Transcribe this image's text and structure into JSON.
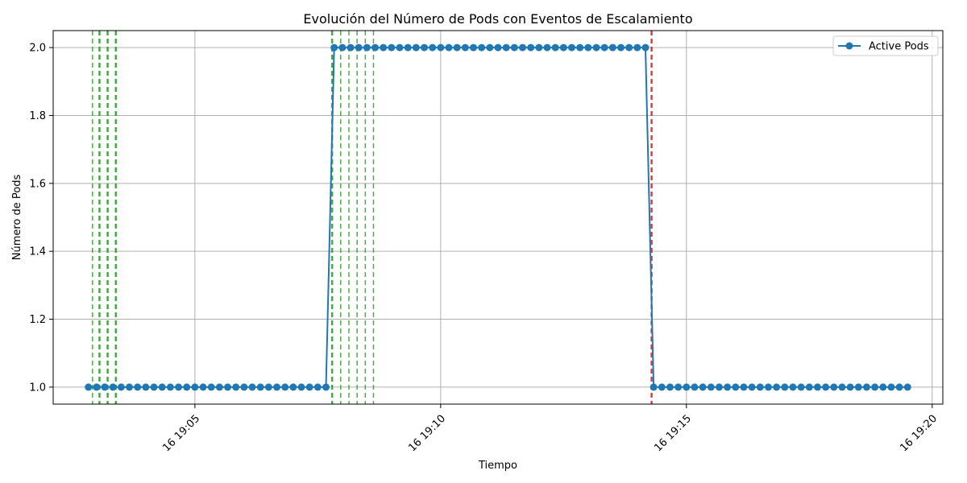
{
  "chart_data": {
    "type": "line",
    "title": "Evolución del Número de Pods con Eventos de Escalamiento",
    "xlabel": "Tiempo",
    "ylabel": "Número de Pods",
    "grid": true,
    "legend_position": "top-right",
    "ylim": [
      0.95,
      2.05
    ],
    "xlim": [
      "19:02:07",
      "19:20:13"
    ],
    "yticks": [
      1.0,
      1.2,
      1.4,
      1.6,
      1.8,
      2.0
    ],
    "xticks": [
      {
        "time": "19:05:00",
        "label": "16 19:05"
      },
      {
        "time": "19:10:00",
        "label": "16 19:10"
      },
      {
        "time": "19:15:00",
        "label": "16 19:15"
      },
      {
        "time": "19:20:00",
        "label": "16 19:20"
      }
    ],
    "series": [
      {
        "name": "Active Pods",
        "color": "#1f77b4",
        "marker": "circle",
        "start_time": "19:02:50",
        "interval_seconds": 10,
        "values": [
          1,
          1,
          1,
          1,
          1,
          1,
          1,
          1,
          1,
          1,
          1,
          1,
          1,
          1,
          1,
          1,
          1,
          1,
          1,
          1,
          1,
          1,
          1,
          1,
          1,
          1,
          1,
          1,
          1,
          1,
          2,
          2,
          2,
          2,
          2,
          2,
          2,
          2,
          2,
          2,
          2,
          2,
          2,
          2,
          2,
          2,
          2,
          2,
          2,
          2,
          2,
          2,
          2,
          2,
          2,
          2,
          2,
          2,
          2,
          2,
          2,
          2,
          2,
          2,
          2,
          2,
          2,
          2,
          2,
          1,
          1,
          1,
          1,
          1,
          1,
          1,
          1,
          1,
          1,
          1,
          1,
          1,
          1,
          1,
          1,
          1,
          1,
          1,
          1,
          1,
          1,
          1,
          1,
          1,
          1,
          1,
          1,
          1,
          1,
          1,
          1
        ]
      }
    ],
    "scale_up_events": {
      "color": "#2ca02c",
      "times": [
        "19:02:55",
        "19:03:03",
        "19:03:04",
        "19:03:13",
        "19:03:14",
        "19:03:23",
        "19:03:24",
        "19:07:47",
        "19:07:48",
        "19:07:58",
        "19:08:08",
        "19:08:18",
        "19:08:28",
        "19:08:38"
      ]
    },
    "scale_down_events": {
      "color": "#d62728",
      "times": [
        "19:14:17",
        "19:14:18"
      ]
    }
  }
}
